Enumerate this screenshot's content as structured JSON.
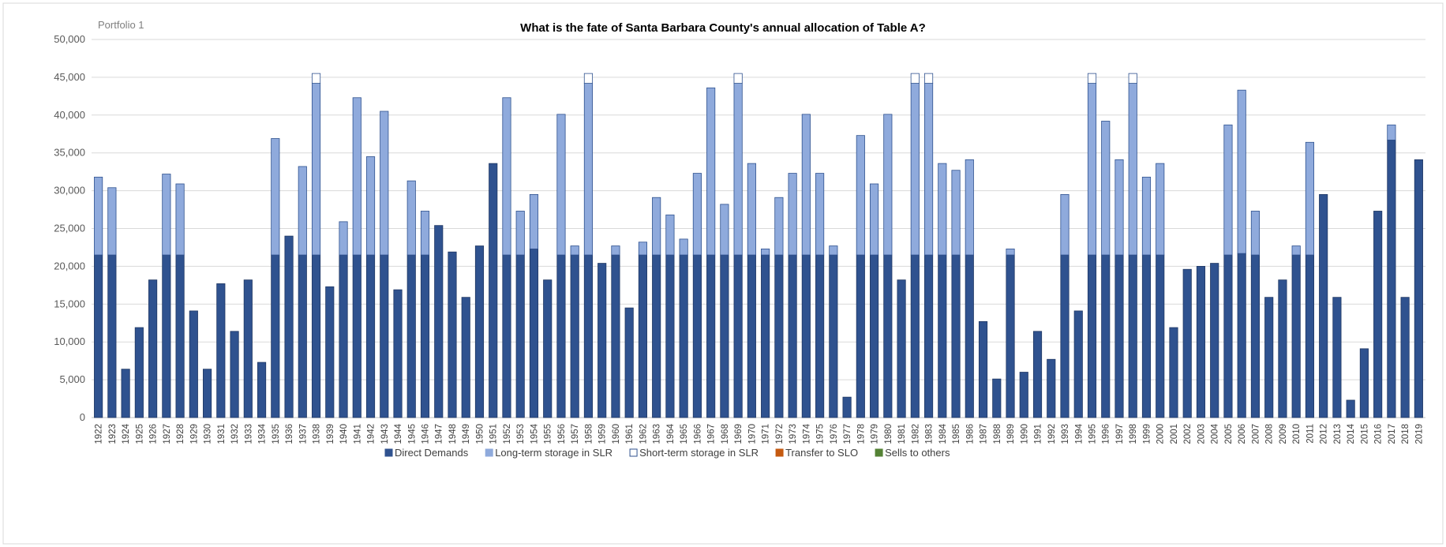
{
  "portfolio_label": "Portfolio 1",
  "chart_data": {
    "type": "bar",
    "stacked": true,
    "title": "What is the fate of Santa Barbara County's annual allocation of Table A?",
    "xlabel": "",
    "ylabel": "",
    "ylim": [
      0,
      50000
    ],
    "yticks": [
      0,
      5000,
      10000,
      15000,
      20000,
      25000,
      30000,
      35000,
      40000,
      45000,
      50000
    ],
    "ytick_labels": [
      "0",
      "5,000",
      "10,000",
      "15,000",
      "20,000",
      "25,000",
      "30,000",
      "35,000",
      "40,000",
      "45,000",
      "50,000"
    ],
    "grid": true,
    "legend_position": "bottom",
    "categories": [
      "1922",
      "1923",
      "1924",
      "1925",
      "1926",
      "1927",
      "1928",
      "1929",
      "1930",
      "1931",
      "1932",
      "1933",
      "1934",
      "1935",
      "1936",
      "1937",
      "1938",
      "1939",
      "1940",
      "1941",
      "1942",
      "1943",
      "1944",
      "1945",
      "1946",
      "1947",
      "1948",
      "1949",
      "1950",
      "1951",
      "1952",
      "1953",
      "1954",
      "1955",
      "1956",
      "1957",
      "1958",
      "1959",
      "1960",
      "1961",
      "1962",
      "1963",
      "1964",
      "1965",
      "1966",
      "1967",
      "1968",
      "1969",
      "1970",
      "1971",
      "1972",
      "1973",
      "1974",
      "1975",
      "1976",
      "1977",
      "1978",
      "1979",
      "1980",
      "1981",
      "1982",
      "1983",
      "1984",
      "1985",
      "1986",
      "1987",
      "1988",
      "1989",
      "1990",
      "1991",
      "1992",
      "1993",
      "1994",
      "1995",
      "1996",
      "1997",
      "1998",
      "1999",
      "2000",
      "2001",
      "2002",
      "2003",
      "2004",
      "2005",
      "2006",
      "2007",
      "2008",
      "2009",
      "2010",
      "2011",
      "2012",
      "2013",
      "2014",
      "2015",
      "2016",
      "2017",
      "2018",
      "2019"
    ],
    "series": [
      {
        "name": "Direct Demands",
        "color": "#2f528f",
        "values": [
          21500,
          21500,
          6400,
          11900,
          18200,
          21500,
          21500,
          14100,
          6400,
          17700,
          11400,
          18200,
          7300,
          21500,
          24000,
          21500,
          21500,
          17300,
          21500,
          21500,
          21500,
          21500,
          16900,
          21500,
          21500,
          25400,
          21900,
          15900,
          22700,
          33600,
          21500,
          21500,
          22300,
          18200,
          21500,
          21500,
          21500,
          20400,
          21500,
          14500,
          21500,
          21500,
          21500,
          21500,
          21500,
          21500,
          21500,
          21500,
          21500,
          21500,
          21500,
          21500,
          21500,
          21500,
          21500,
          2700,
          21500,
          21500,
          21500,
          18200,
          21500,
          21500,
          21500,
          21500,
          21500,
          12700,
          5100,
          21500,
          6000,
          11400,
          7700,
          21500,
          14100,
          21500,
          21500,
          21500,
          21500,
          21500,
          21500,
          11900,
          19600,
          20000,
          20400,
          21500,
          21700,
          21500,
          15900,
          18200,
          21500,
          21500,
          29500,
          15900,
          2300,
          9100,
          27300,
          36700,
          15900,
          34100
        ]
      },
      {
        "name": "Long-term storage in SLR",
        "color": "#8faadc",
        "values": [
          10300,
          8900,
          0,
          0,
          0,
          10700,
          9400,
          0,
          0,
          0,
          0,
          0,
          0,
          15400,
          0,
          11700,
          22700,
          0,
          4400,
          20800,
          13000,
          19000,
          0,
          9800,
          5800,
          0,
          0,
          0,
          0,
          0,
          20800,
          5800,
          7200,
          0,
          18600,
          1200,
          22700,
          0,
          1200,
          0,
          1700,
          7600,
          5300,
          2100,
          10800,
          22100,
          6700,
          22700,
          12100,
          800,
          7600,
          10800,
          18600,
          10800,
          1200,
          0,
          15800,
          9400,
          18600,
          0,
          22700,
          22700,
          12100,
          11200,
          12600,
          0,
          0,
          800,
          0,
          0,
          0,
          8000,
          0,
          22700,
          17700,
          12600,
          22700,
          10300,
          12100,
          0,
          0,
          0,
          0,
          17200,
          21600,
          5800,
          0,
          0,
          1200,
          14900,
          0,
          0,
          0,
          0,
          0,
          2000,
          0,
          0
        ]
      },
      {
        "name": "Short-term storage in SLR",
        "color": "#ffffff",
        "values": [
          0,
          0,
          0,
          0,
          0,
          0,
          0,
          0,
          0,
          0,
          0,
          0,
          0,
          0,
          0,
          0,
          1300,
          0,
          0,
          0,
          0,
          0,
          0,
          0,
          0,
          0,
          0,
          0,
          0,
          0,
          0,
          0,
          0,
          0,
          0,
          0,
          1300,
          0,
          0,
          0,
          0,
          0,
          0,
          0,
          0,
          0,
          0,
          1300,
          0,
          0,
          0,
          0,
          0,
          0,
          0,
          0,
          0,
          0,
          0,
          0,
          1300,
          1300,
          0,
          0,
          0,
          0,
          0,
          0,
          0,
          0,
          0,
          0,
          0,
          1300,
          0,
          0,
          1300,
          0,
          0,
          0,
          0,
          0,
          0,
          0,
          0,
          0,
          0,
          0,
          0,
          0,
          0,
          0,
          0,
          0,
          0,
          0,
          0,
          0
        ]
      },
      {
        "name": "Transfer to SLO",
        "color": "#c55a11",
        "values": [
          0,
          0,
          0,
          0,
          0,
          0,
          0,
          0,
          0,
          0,
          0,
          0,
          0,
          0,
          0,
          0,
          0,
          0,
          0,
          0,
          0,
          0,
          0,
          0,
          0,
          0,
          0,
          0,
          0,
          0,
          0,
          0,
          0,
          0,
          0,
          0,
          0,
          0,
          0,
          0,
          0,
          0,
          0,
          0,
          0,
          0,
          0,
          0,
          0,
          0,
          0,
          0,
          0,
          0,
          0,
          0,
          0,
          0,
          0,
          0,
          0,
          0,
          0,
          0,
          0,
          0,
          0,
          0,
          0,
          0,
          0,
          0,
          0,
          0,
          0,
          0,
          0,
          0,
          0,
          0,
          0,
          0,
          0,
          0,
          0,
          0,
          0,
          0,
          0,
          0,
          0,
          0,
          0,
          0,
          0,
          0,
          0,
          0
        ]
      },
      {
        "name": "Sells to others",
        "color": "#548235",
        "values": [
          0,
          0,
          0,
          0,
          0,
          0,
          0,
          0,
          0,
          0,
          0,
          0,
          0,
          0,
          0,
          0,
          0,
          0,
          0,
          0,
          0,
          0,
          0,
          0,
          0,
          0,
          0,
          0,
          0,
          0,
          0,
          0,
          0,
          0,
          0,
          0,
          0,
          0,
          0,
          0,
          0,
          0,
          0,
          0,
          0,
          0,
          0,
          0,
          0,
          0,
          0,
          0,
          0,
          0,
          0,
          0,
          0,
          0,
          0,
          0,
          0,
          0,
          0,
          0,
          0,
          0,
          0,
          0,
          0,
          0,
          0,
          0,
          0,
          0,
          0,
          0,
          0,
          0,
          0,
          0,
          0,
          0,
          0,
          0,
          0,
          0,
          0,
          0,
          0,
          0,
          0,
          0,
          0,
          0,
          0,
          0,
          0,
          0
        ]
      }
    ]
  }
}
